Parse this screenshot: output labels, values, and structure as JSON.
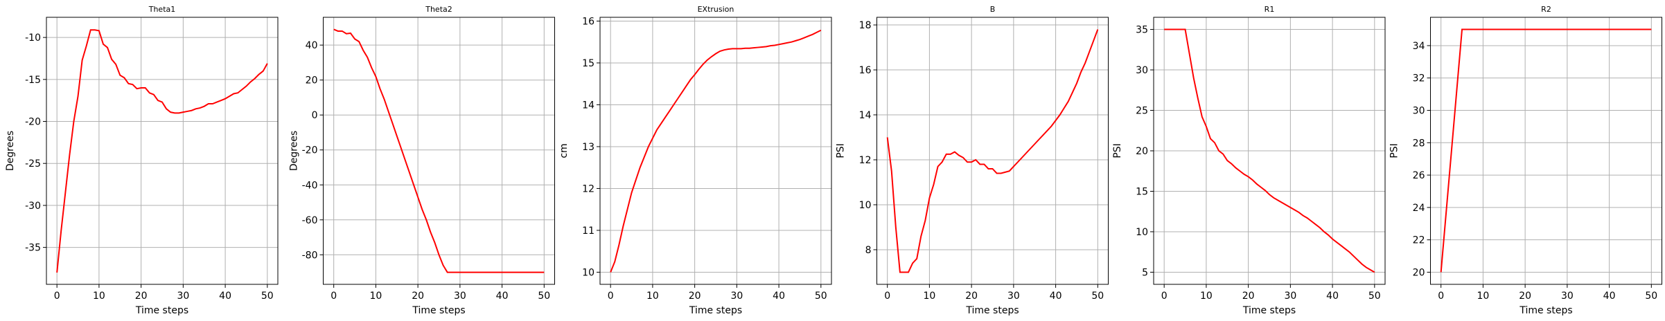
{
  "chart_data": [
    {
      "type": "line",
      "title": "Theta1",
      "xlabel": "Time steps",
      "ylabel": "Degrees",
      "color": "red",
      "grid": true,
      "x": [
        0,
        1,
        2,
        3,
        4,
        5,
        6,
        7,
        8,
        9,
        10,
        11,
        12,
        13,
        14,
        15,
        16,
        17,
        18,
        19,
        20,
        21,
        22,
        23,
        24,
        25,
        26,
        27,
        28,
        29,
        30,
        31,
        32,
        33,
        34,
        35,
        36,
        37,
        38,
        39,
        40,
        41,
        42,
        43,
        44,
        45,
        46,
        47,
        48,
        49,
        50
      ],
      "values": [
        -38,
        -33,
        -28.5,
        -24,
        -20,
        -17,
        -12.7,
        -11,
        -9.1,
        -9.1,
        -9.2,
        -10.8,
        -11.2,
        -12.6,
        -13.2,
        -14.5,
        -14.8,
        -15.5,
        -15.6,
        -16.1,
        -16,
        -16,
        -16.6,
        -16.8,
        -17.5,
        -17.7,
        -18.5,
        -18.9,
        -19,
        -19,
        -18.9,
        -18.8,
        -18.7,
        -18.5,
        -18.4,
        -18.2,
        -17.9,
        -17.9,
        -17.7,
        -17.5,
        -17.3,
        -17,
        -16.7,
        -16.6,
        -16.2,
        -15.8,
        -15.3,
        -14.9,
        -14.4,
        -14,
        -13.1
      ],
      "xlim": [
        -2.5,
        52.5
      ],
      "xticks": [
        0,
        10,
        20,
        30,
        40,
        50
      ],
      "ylim": [
        -39.4,
        -7.6
      ],
      "yticks": [
        -35,
        -30,
        -25,
        -20,
        -15,
        -10
      ]
    },
    {
      "type": "line",
      "title": "Theta2",
      "xlabel": "Time steps",
      "ylabel": "Degrees",
      "color": "red",
      "grid": true,
      "x": [
        0,
        1,
        2,
        3,
        4,
        5,
        6,
        7,
        8,
        9,
        10,
        11,
        12,
        13,
        14,
        15,
        16,
        17,
        18,
        19,
        20,
        21,
        22,
        23,
        24,
        25,
        26,
        27,
        28,
        29,
        30,
        31,
        32,
        33,
        34,
        35,
        36,
        37,
        38,
        39,
        40,
        41,
        42,
        43,
        44,
        45,
        46,
        47,
        48,
        49,
        50
      ],
      "values": [
        49,
        48,
        48,
        46.5,
        46.8,
        43.5,
        42,
        37,
        33,
        27,
        22,
        15,
        9,
        2,
        -5,
        -12,
        -19,
        -26,
        -33,
        -40,
        -47,
        -54,
        -60,
        -67,
        -73,
        -80,
        -86,
        -90,
        -90,
        -90,
        -90,
        -90,
        -90,
        -90,
        -90,
        -90,
        -90,
        -90,
        -90,
        -90,
        -90,
        -90,
        -90,
        -90,
        -90,
        -90,
        -90,
        -90,
        -90,
        -90,
        -90
      ],
      "xlim": [
        -2.5,
        52.5
      ],
      "xticks": [
        0,
        10,
        20,
        30,
        40,
        50
      ],
      "ylim": [
        -96.9,
        55.9
      ],
      "yticks": [
        -80,
        -60,
        -40,
        -20,
        0,
        20,
        40
      ]
    },
    {
      "type": "line",
      "title": "EXtrusion",
      "xlabel": "Time steps",
      "ylabel": "cm",
      "color": "red",
      "grid": true,
      "x": [
        0,
        1,
        2,
        3,
        4,
        5,
        6,
        7,
        8,
        9,
        10,
        11,
        12,
        13,
        14,
        15,
        16,
        17,
        18,
        19,
        20,
        21,
        22,
        23,
        24,
        25,
        26,
        27,
        28,
        29,
        30,
        31,
        32,
        33,
        34,
        35,
        36,
        37,
        38,
        39,
        40,
        41,
        42,
        43,
        44,
        45,
        46,
        47,
        48,
        49,
        50
      ],
      "values": [
        10,
        10.25,
        10.65,
        11.1,
        11.5,
        11.9,
        12.2,
        12.5,
        12.75,
        13,
        13.2,
        13.4,
        13.55,
        13.7,
        13.85,
        14,
        14.15,
        14.3,
        14.45,
        14.6,
        14.72,
        14.85,
        14.97,
        15.07,
        15.15,
        15.22,
        15.28,
        15.31,
        15.33,
        15.34,
        15.34,
        15.34,
        15.35,
        15.35,
        15.36,
        15.37,
        15.38,
        15.39,
        15.41,
        15.42,
        15.44,
        15.46,
        15.48,
        15.5,
        15.53,
        15.56,
        15.6,
        15.64,
        15.68,
        15.73,
        15.78
      ],
      "xlim": [
        -2.5,
        52.5
      ],
      "xticks": [
        0,
        10,
        20,
        30,
        40,
        50
      ],
      "ylim": [
        9.71,
        16.09
      ],
      "yticks": [
        10,
        11,
        12,
        13,
        14,
        15,
        16
      ]
    },
    {
      "type": "line",
      "title": "B",
      "xlabel": "Time steps",
      "ylabel": "PSI",
      "color": "red",
      "grid": true,
      "x": [
        0,
        1,
        2,
        3,
        4,
        5,
        6,
        7,
        8,
        9,
        10,
        11,
        12,
        13,
        14,
        15,
        16,
        17,
        18,
        19,
        20,
        21,
        22,
        23,
        24,
        25,
        26,
        27,
        28,
        29,
        30,
        31,
        32,
        33,
        34,
        35,
        36,
        37,
        38,
        39,
        40,
        41,
        42,
        43,
        44,
        45,
        46,
        47,
        48,
        49,
        50
      ],
      "values": [
        13,
        11.5,
        9,
        7,
        7,
        7,
        7.4,
        7.6,
        8.6,
        9.3,
        10.3,
        10.9,
        11.7,
        11.9,
        12.25,
        12.25,
        12.35,
        12.2,
        12.1,
        11.9,
        11.9,
        12,
        11.8,
        11.8,
        11.6,
        11.6,
        11.4,
        11.4,
        11.45,
        11.5,
        11.7,
        11.9,
        12.1,
        12.3,
        12.5,
        12.7,
        12.9,
        13.1,
        13.3,
        13.5,
        13.75,
        14,
        14.3,
        14.6,
        15,
        15.4,
        15.9,
        16.3,
        16.8,
        17.3,
        17.8
      ],
      "xlim": [
        -2.5,
        52.5
      ],
      "xticks": [
        0,
        10,
        20,
        30,
        40,
        50
      ],
      "ylim": [
        6.46,
        18.34
      ],
      "yticks": [
        8,
        10,
        12,
        14,
        16,
        18
      ]
    },
    {
      "type": "line",
      "title": "R1",
      "xlabel": "Time steps",
      "ylabel": "PSI",
      "color": "red",
      "grid": true,
      "x": [
        0,
        1,
        2,
        3,
        4,
        5,
        6,
        7,
        8,
        9,
        10,
        11,
        12,
        13,
        14,
        15,
        16,
        17,
        18,
        19,
        20,
        21,
        22,
        23,
        24,
        25,
        26,
        27,
        28,
        29,
        30,
        31,
        32,
        33,
        34,
        35,
        36,
        37,
        38,
        39,
        40,
        41,
        42,
        43,
        44,
        45,
        46,
        47,
        48,
        49,
        50
      ],
      "values": [
        35,
        35,
        35,
        35,
        35,
        35,
        32,
        29,
        26.5,
        24.2,
        23,
        21.5,
        21,
        20,
        19.6,
        18.8,
        18.4,
        17.9,
        17.5,
        17.1,
        16.8,
        16.4,
        15.9,
        15.5,
        15.1,
        14.6,
        14.2,
        13.9,
        13.6,
        13.3,
        13,
        12.7,
        12.4,
        12,
        11.7,
        11.3,
        10.9,
        10.5,
        10,
        9.6,
        9.1,
        8.7,
        8.3,
        7.9,
        7.5,
        7,
        6.5,
        6,
        5.6,
        5.3,
        5
      ],
      "xlim": [
        -2.5,
        52.5
      ],
      "xticks": [
        0,
        10,
        20,
        30,
        40,
        50
      ],
      "ylim": [
        3.5,
        36.5
      ],
      "yticks": [
        5,
        10,
        15,
        20,
        25,
        30,
        35
      ]
    },
    {
      "type": "line",
      "title": "R2",
      "xlabel": "Time steps",
      "ylabel": "PSI",
      "color": "red",
      "grid": true,
      "x": [
        0,
        1,
        2,
        3,
        4,
        5,
        6,
        7,
        8,
        9,
        10,
        11,
        12,
        13,
        14,
        15,
        16,
        17,
        18,
        19,
        20,
        21,
        22,
        23,
        24,
        25,
        26,
        27,
        28,
        29,
        30,
        31,
        32,
        33,
        34,
        35,
        36,
        37,
        38,
        39,
        40,
        41,
        42,
        43,
        44,
        45,
        46,
        47,
        48,
        49,
        50
      ],
      "values": [
        20,
        23,
        26,
        29,
        32,
        35,
        35,
        35,
        35,
        35,
        35,
        35,
        35,
        35,
        35,
        35,
        35,
        35,
        35,
        35,
        35,
        35,
        35,
        35,
        35,
        35,
        35,
        35,
        35,
        35,
        35,
        35,
        35,
        35,
        35,
        35,
        35,
        35,
        35,
        35,
        35,
        35,
        35,
        35,
        35,
        35,
        35,
        35,
        35,
        35,
        35
      ],
      "xlim": [
        -2.5,
        52.5
      ],
      "xticks": [
        0,
        10,
        20,
        30,
        40,
        50
      ],
      "ylim": [
        19.25,
        35.75
      ],
      "yticks": [
        20,
        22,
        24,
        26,
        28,
        30,
        32,
        34
      ]
    }
  ]
}
